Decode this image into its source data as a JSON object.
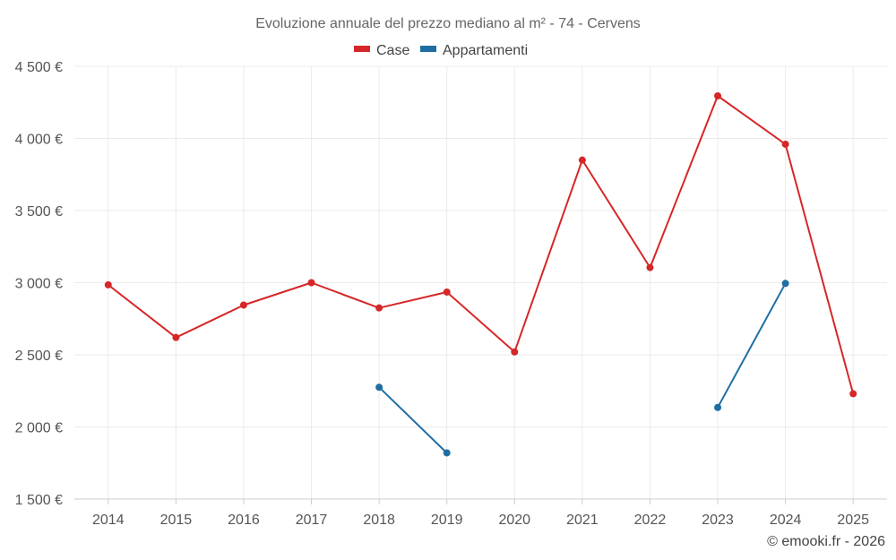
{
  "chart_data": {
    "type": "line",
    "title": "Evoluzione annuale del prezzo mediano al m² - 74 - Cervens",
    "xlabel": "",
    "ylabel": "",
    "categories": [
      "2014",
      "2015",
      "2016",
      "2017",
      "2018",
      "2019",
      "2020",
      "2021",
      "2022",
      "2023",
      "2024",
      "2025"
    ],
    "ylim": [
      1500,
      4500
    ],
    "yticks": [
      1500,
      2000,
      2500,
      3000,
      3500,
      4000,
      4500
    ],
    "ytick_labels": [
      "1 500 €",
      "2 000 €",
      "2 500 €",
      "3 000 €",
      "3 500 €",
      "4 000 €",
      "4 500 €"
    ],
    "grid": true,
    "legend_position": "top-center",
    "series": [
      {
        "name": "Case",
        "color": "#d62728",
        "values": [
          2985,
          2620,
          2845,
          3000,
          2825,
          2935,
          2520,
          3850,
          3105,
          4295,
          3960,
          2230
        ]
      },
      {
        "name": "Appartamenti",
        "color": "#1f6ea3",
        "values": [
          null,
          null,
          null,
          null,
          2275,
          1820,
          null,
          null,
          null,
          2135,
          2995,
          null
        ]
      }
    ],
    "credit": "© emooki.fr - 2026"
  }
}
